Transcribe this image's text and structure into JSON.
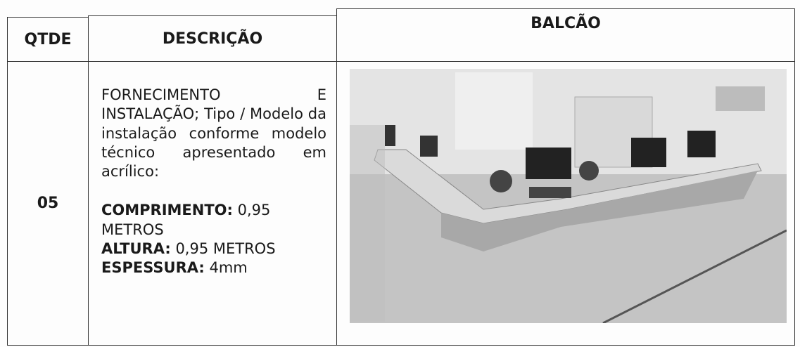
{
  "table": {
    "headers": [
      "QTDE",
      "DESCRIÇÃO",
      "BALCÃO"
    ],
    "rows": [
      [
        "05",
        {
          "text": "FORNECIMENTO E INSTALAÇÃO; Tipo / Modelo da instalação conforme modelo técnico apresentado em acrílico:",
          "specs": [
            {
              "label": "COMPRIMENTO:",
              "value": "0,95 METROS"
            },
            {
              "label": "ALTURA:",
              "value": "0,95 METROS"
            },
            {
              "label": "ESPESSURA:",
              "value": "4mm"
            }
          ]
        }
      ]
    ]
  }
}
